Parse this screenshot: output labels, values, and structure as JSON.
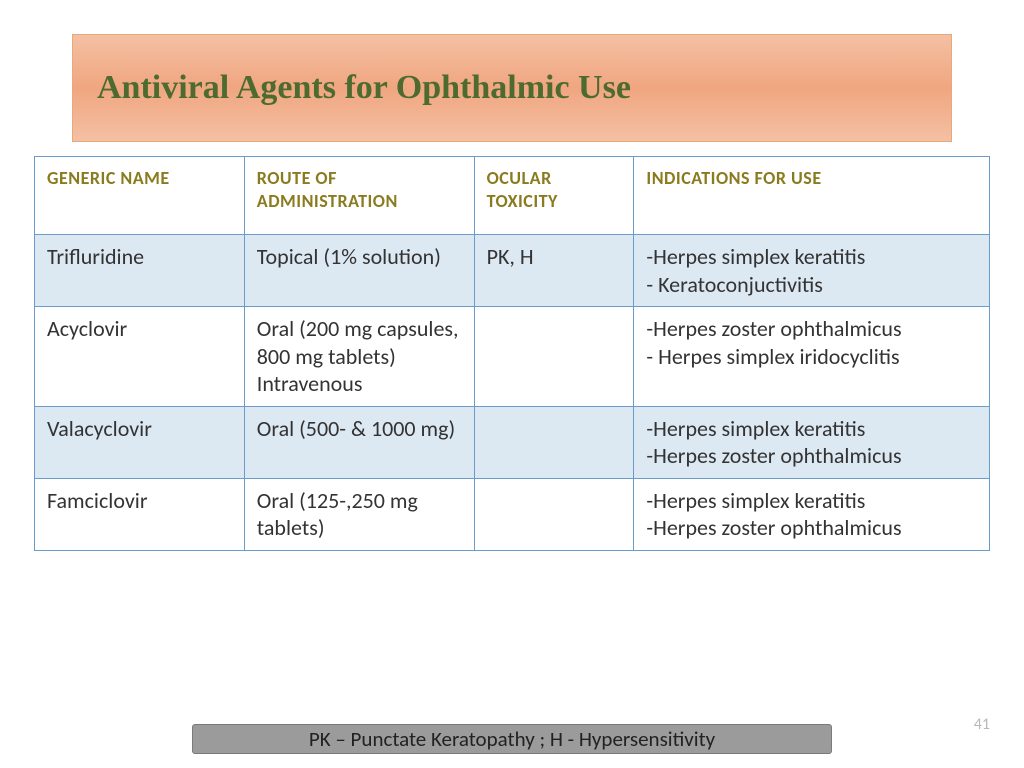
{
  "title": "Antiviral Agents for Ophthalmic Use",
  "table": {
    "columns": [
      "Generic Name",
      "Route of Administration",
      "Ocular Toxicity",
      "Indications for Use"
    ],
    "rows": [
      {
        "generic": "Trifluridine",
        "route": "Topical (1% solution)",
        "ocular": "PK, H",
        "indications": "-Herpes simplex keratitis\n- Keratoconjuctivitis"
      },
      {
        "generic": "Acyclovir",
        "route": "Oral (200 mg capsules, 800 mg tablets)\nIntravenous",
        "ocular": "",
        "indications": "-Herpes zoster ophthalmicus\n- Herpes simplex iridocyclitis"
      },
      {
        "generic": "Valacyclovir",
        "route": "Oral (500- & 1000 mg)",
        "ocular": "",
        "indications": "-Herpes simplex keratitis\n-Herpes zoster ophthalmicus"
      },
      {
        "generic": "Famciclovir",
        "route": "Oral (125-,250 mg tablets)",
        "ocular": "",
        "indications": "-Herpes simplex keratitis\n-Herpes zoster ophthalmicus"
      }
    ]
  },
  "footer_note": "PK – Punctate Keratopathy ; H - Hypersensitivity",
  "page_number": "41",
  "colors": {
    "title_banner_top": "#f4c0a3",
    "title_banner_mid": "#f0a680",
    "title_text": "#4d6b2f",
    "header_text": "#8a7b1f",
    "border": "#6b9bc9",
    "row_alt": "#dce8f2",
    "row_plain": "#ffffff",
    "footer_bg": "#9b9b9b",
    "page_num": "#b8b8b8"
  },
  "fonts": {
    "title_size": 34,
    "header_size": 18,
    "cell_size": 22,
    "footer_size": 21
  }
}
